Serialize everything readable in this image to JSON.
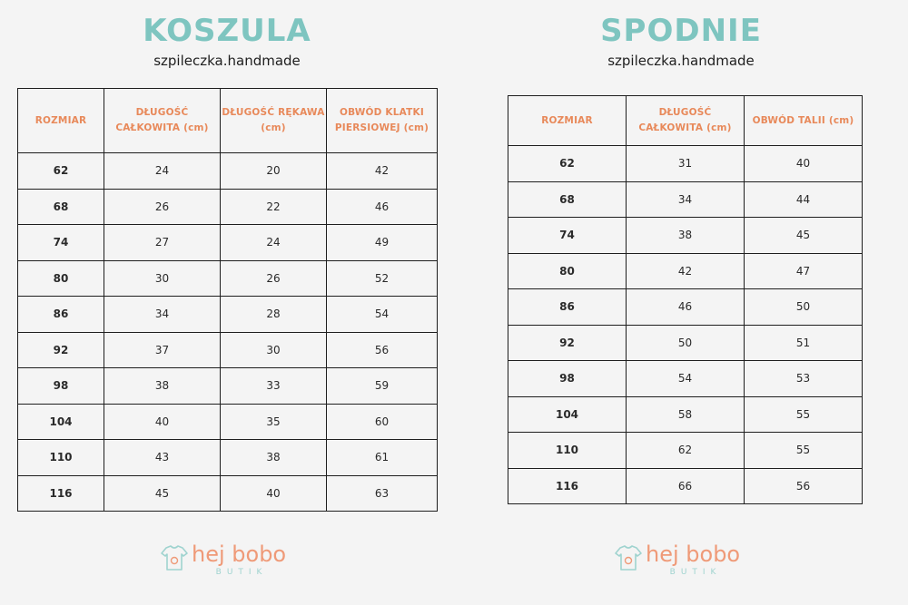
{
  "koszula": {
    "title": "KOSZULA",
    "subtitle": "szpileczka.handmade",
    "headers": [
      "ROZMIAR",
      "DŁUGOŚĆ CAŁKOWITA (cm)",
      "DŁUGOŚĆ RĘKAWA (cm)",
      "OBWÓD KLATKI PIERSIOWEJ (cm)"
    ],
    "rows": [
      [
        "62",
        "24",
        "20",
        "42"
      ],
      [
        "68",
        "26",
        "22",
        "46"
      ],
      [
        "74",
        "27",
        "24",
        "49"
      ],
      [
        "80",
        "30",
        "26",
        "52"
      ],
      [
        "86",
        "34",
        "28",
        "54"
      ],
      [
        "92",
        "37",
        "30",
        "56"
      ],
      [
        "98",
        "38",
        "33",
        "59"
      ],
      [
        "104",
        "40",
        "35",
        "60"
      ],
      [
        "110",
        "43",
        "38",
        "61"
      ],
      [
        "116",
        "45",
        "40",
        "63"
      ]
    ]
  },
  "spodnie": {
    "title": "SPODNIE",
    "subtitle": "szpileczka.handmade",
    "headers": [
      "ROZMIAR",
      "DŁUGOŚĆ CAŁKOWITA (cm)",
      "OBWÓD TALII (cm)"
    ],
    "rows": [
      [
        "62",
        "31",
        "40"
      ],
      [
        "68",
        "34",
        "44"
      ],
      [
        "74",
        "38",
        "45"
      ],
      [
        "80",
        "42",
        "47"
      ],
      [
        "86",
        "46",
        "50"
      ],
      [
        "92",
        "50",
        "51"
      ],
      [
        "98",
        "54",
        "53"
      ],
      [
        "104",
        "58",
        "55"
      ],
      [
        "110",
        "62",
        "55"
      ],
      [
        "116",
        "66",
        "56"
      ]
    ]
  },
  "logo": {
    "name": "hej bobo",
    "sub": "BUTIK",
    "icon": "baby-shirt-icon"
  },
  "colors": {
    "title": "#7ec5c0",
    "header": "#e8895a",
    "logo": "#ef9a78",
    "logo_sub": "#9fd3cf"
  }
}
